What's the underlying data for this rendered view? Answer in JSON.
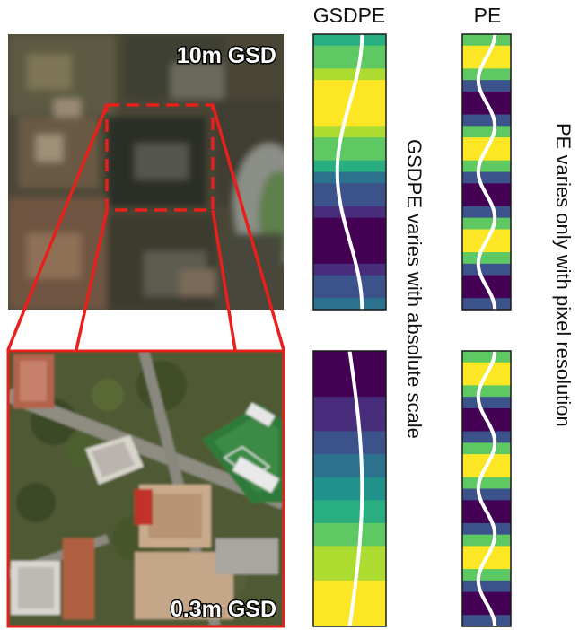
{
  "headings": {
    "gsdpe": "GSDPE",
    "pe": "PE"
  },
  "side_labels": {
    "gsdpe": "GSDPE varies with absolute scale",
    "pe": "PE varies only with pixel resolution"
  },
  "images": {
    "low_res_label": "10m GSD",
    "high_res_label": "0.3m GSD"
  },
  "colors": {
    "zoom_box": "#e8201c",
    "curve": "#ffffff",
    "viridis": [
      "#440154",
      "#472d7b",
      "#3b528b",
      "#2c728e",
      "#21918c",
      "#28ae80",
      "#5ec962",
      "#addc30",
      "#fde725"
    ]
  },
  "strips": {
    "gsdpe_top": {
      "cycles": 1.0,
      "phase": 0.25
    },
    "gsdpe_bottom": {
      "cycles": 0.5,
      "phase": 0.0
    },
    "pe_top": {
      "cycles": 3.0,
      "phase": 0.25
    },
    "pe_bottom": {
      "cycles": 3.0,
      "phase": 0.25
    }
  }
}
